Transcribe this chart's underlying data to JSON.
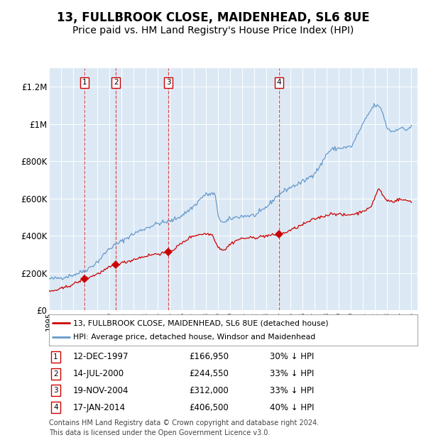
{
  "title": "13, FULLBROOK CLOSE, MAIDENHEAD, SL6 8UE",
  "subtitle": "Price paid vs. HM Land Registry's House Price Index (HPI)",
  "legend_label_red": "13, FULLBROOK CLOSE, MAIDENHEAD, SL6 8UE (detached house)",
  "legend_label_blue": "HPI: Average price, detached house, Windsor and Maidenhead",
  "footer_line1": "Contains HM Land Registry data © Crown copyright and database right 2024.",
  "footer_line2": "This data is licensed under the Open Government Licence v3.0.",
  "transactions": [
    {
      "num": 1,
      "date": "12-DEC-1997",
      "price": 166950,
      "pct": "30%",
      "year": 1997.95
    },
    {
      "num": 2,
      "date": "14-JUL-2000",
      "price": 244550,
      "pct": "33%",
      "year": 2000.54
    },
    {
      "num": 3,
      "date": "19-NOV-2004",
      "price": 312000,
      "pct": "33%",
      "year": 2004.88
    },
    {
      "num": 4,
      "date": "17-JAN-2014",
      "price": 406500,
      "pct": "40%",
      "year": 2014.04
    }
  ],
  "ylim": [
    0,
    1300000
  ],
  "xlim": [
    1995.0,
    2025.5
  ],
  "yticks": [
    0,
    200000,
    400000,
    600000,
    800000,
    1000000,
    1200000
  ],
  "ytick_labels": [
    "£0",
    "£200K",
    "£400K",
    "£600K",
    "£800K",
    "£1M",
    "£1.2M"
  ],
  "background_color": "#ffffff",
  "plot_bg_color": "#dce9f5",
  "grid_color": "#ffffff",
  "red_color": "#cc0000",
  "blue_color": "#6699cc",
  "dashed_color": "#dd3333",
  "title_fontsize": 12,
  "subtitle_fontsize": 10,
  "hpi_key_years": [
    1995.0,
    1996.0,
    1997.0,
    1998.0,
    1999.0,
    2000.0,
    2001.0,
    2002.0,
    2003.0,
    2004.0,
    2005.0,
    2006.0,
    2007.0,
    2008.0,
    2008.7,
    2009.0,
    2009.5,
    2010.0,
    2011.0,
    2012.0,
    2013.0,
    2014.0,
    2015.0,
    2016.0,
    2017.0,
    2017.5,
    2018.0,
    2018.5,
    2019.0,
    2020.0,
    2020.5,
    2021.0,
    2021.5,
    2022.0,
    2022.5,
    2023.0,
    2023.5,
    2024.0,
    2024.5,
    2025.0
  ],
  "hpi_key_vals": [
    168000,
    175000,
    190000,
    215000,
    260000,
    330000,
    370000,
    410000,
    440000,
    465000,
    478000,
    510000,
    560000,
    620000,
    625000,
    510000,
    470000,
    490000,
    505000,
    510000,
    555000,
    620000,
    660000,
    690000,
    740000,
    780000,
    840000,
    865000,
    870000,
    880000,
    940000,
    1000000,
    1060000,
    1100000,
    1080000,
    980000,
    960000,
    980000,
    970000,
    990000
  ],
  "red_key_years": [
    1995.0,
    1996.0,
    1997.0,
    1997.95,
    1999.0,
    2000.54,
    2001.5,
    2002.5,
    2003.5,
    2004.88,
    2006.0,
    2007.0,
    2008.0,
    2008.5,
    2009.0,
    2009.5,
    2010.0,
    2011.0,
    2012.0,
    2013.0,
    2014.04,
    2015.0,
    2016.0,
    2017.0,
    2018.0,
    2018.5,
    2019.0,
    2019.5,
    2020.0,
    2020.5,
    2021.0,
    2021.5,
    2022.0,
    2022.3,
    2022.7,
    2023.0,
    2023.5,
    2024.0,
    2024.5,
    2025.0
  ],
  "red_key_vals": [
    100000,
    115000,
    140000,
    166950,
    195000,
    244550,
    262000,
    282000,
    298000,
    312000,
    360000,
    400000,
    410000,
    405000,
    340000,
    325000,
    355000,
    385000,
    390000,
    400000,
    406500,
    430000,
    460000,
    490000,
    510000,
    520000,
    515000,
    510000,
    515000,
    520000,
    535000,
    545000,
    610000,
    650000,
    610000,
    590000,
    585000,
    595000,
    590000,
    585000
  ]
}
